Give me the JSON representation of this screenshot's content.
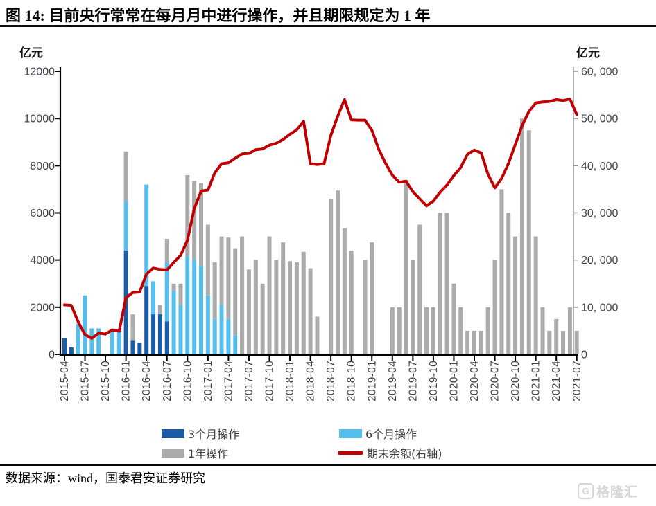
{
  "title": "图 14:  目前央行常常在每月月中进行操作，并且期限规定为 1 年",
  "left_axis": {
    "unit": "亿元",
    "tick_labels": [
      "0",
      "2000",
      "4000",
      "6000",
      "8000",
      "10000",
      "12000"
    ]
  },
  "right_axis": {
    "unit": "亿元",
    "tick_labels": [
      "0",
      "10, 000",
      "20, 000",
      "30, 000",
      "40, 000",
      "50, 000",
      "60, 000"
    ]
  },
  "source_note": "数据来源：wind，国泰君安证券研究",
  "watermark": {
    "icon": "gelonghui-g-logo",
    "text": "格隆汇"
  },
  "colors": {
    "bar_3m": "#1B5AA5",
    "bar_6m": "#56BEEB",
    "bar_1y": "#ABABAB",
    "balance_line": "#C00000",
    "axis_line": "#000000",
    "right_axis_line": "#8f8f94",
    "tick_text": "#44444c"
  },
  "chart_data": {
    "type": "bar",
    "subtype": "stacked-bars-with-line-overlay-dual-axis",
    "grid": false,
    "legend_position": "bottom",
    "left_ylim": [
      0,
      12000
    ],
    "right_ylim": [
      0,
      60000
    ],
    "x_tick_every": 3,
    "categories": [
      "2015-04",
      "2015-05",
      "2015-06",
      "2015-07",
      "2015-08",
      "2015-09",
      "2015-10",
      "2015-11",
      "2015-12",
      "2016-01",
      "2016-02",
      "2016-03",
      "2016-04",
      "2016-05",
      "2016-06",
      "2016-07",
      "2016-08",
      "2016-09",
      "2016-10",
      "2016-11",
      "2016-12",
      "2017-01",
      "2017-02",
      "2017-03",
      "2017-04",
      "2017-05",
      "2017-06",
      "2017-07",
      "2017-08",
      "2017-09",
      "2017-10",
      "2017-11",
      "2017-12",
      "2018-01",
      "2018-02",
      "2018-03",
      "2018-04",
      "2018-05",
      "2018-06",
      "2018-07",
      "2018-08",
      "2018-09",
      "2018-10",
      "2018-11",
      "2018-12",
      "2019-01",
      "2019-02",
      "2019-03",
      "2019-04",
      "2019-05",
      "2019-06",
      "2019-07",
      "2019-08",
      "2019-09",
      "2019-10",
      "2019-11",
      "2019-12",
      "2020-01",
      "2020-02",
      "2020-03",
      "2020-04",
      "2020-05",
      "2020-06",
      "2020-07",
      "2020-08",
      "2020-09",
      "2020-10",
      "2020-11",
      "2020-12",
      "2021-01",
      "2021-02",
      "2021-03",
      "2021-04",
      "2021-05",
      "2021-06",
      "2021-07"
    ],
    "series": [
      {
        "name": "3个月操作",
        "type": "bar",
        "stack": true,
        "axis": "left",
        "color": "#1B5AA5",
        "values": [
          700,
          300,
          0,
          0,
          0,
          0,
          0,
          0,
          0,
          4400,
          600,
          500,
          2900,
          1700,
          1700,
          1400,
          0,
          0,
          0,
          0,
          0,
          0,
          0,
          0,
          0,
          0,
          0,
          0,
          0,
          0,
          0,
          0,
          0,
          0,
          0,
          0,
          0,
          0,
          0,
          0,
          0,
          0,
          0,
          0,
          0,
          0,
          0,
          0,
          0,
          0,
          0,
          0,
          0,
          0,
          0,
          0,
          0,
          0,
          0,
          0,
          0,
          0,
          0,
          0,
          0,
          0,
          0,
          0,
          0,
          0,
          0,
          0,
          0,
          0,
          0,
          0
        ]
      },
      {
        "name": "6个月操作",
        "type": "bar",
        "stack": true,
        "axis": "left",
        "color": "#56BEEB",
        "values": [
          0,
          0,
          1300,
          2500,
          1100,
          1100,
          0,
          1000,
          1000,
          2100,
          0,
          0,
          4300,
          1400,
          0,
          2500,
          2700,
          2100,
          4150,
          4000,
          3750,
          2500,
          1500,
          2100,
          1500,
          800,
          0,
          0,
          0,
          0,
          0,
          0,
          0,
          0,
          0,
          0,
          0,
          0,
          0,
          0,
          0,
          0,
          0,
          0,
          0,
          0,
          0,
          0,
          0,
          0,
          0,
          0,
          0,
          0,
          0,
          0,
          0,
          0,
          0,
          0,
          0,
          0,
          0,
          0,
          0,
          0,
          0,
          0,
          0,
          0,
          0,
          0,
          0,
          0,
          0,
          0
        ]
      },
      {
        "name": "1年操作",
        "type": "bar",
        "stack": true,
        "axis": "left",
        "color": "#ABABAB",
        "values": [
          0,
          0,
          0,
          0,
          0,
          0,
          0,
          0,
          0,
          2100,
          1100,
          0,
          0,
          0,
          400,
          1000,
          300,
          900,
          3450,
          3350,
          3500,
          3000,
          2400,
          2900,
          3450,
          3700,
          5000,
          3600,
          4000,
          3000,
          5000,
          4000,
          4750,
          3950,
          3900,
          4350,
          3650,
          1600,
          0,
          6600,
          6950,
          5350,
          4400,
          0,
          4000,
          4750,
          0,
          0,
          2000,
          2000,
          7400,
          4000,
          5500,
          2000,
          2000,
          6000,
          6000,
          3000,
          2000,
          1000,
          1000,
          1000,
          2000,
          4000,
          7000,
          6000,
          5000,
          10000,
          9500,
          5000,
          2000,
          1000,
          1500,
          1000,
          2000,
          1000
        ]
      },
      {
        "name": "期末余额(右轴)",
        "type": "line",
        "axis": "right",
        "color": "#C00000",
        "values": [
          10500,
          10400,
          6900,
          4200,
          3400,
          4500,
          4300,
          5200,
          4900,
          12000,
          13100,
          13200,
          17000,
          18300,
          18000,
          17900,
          19500,
          21000,
          24200,
          30900,
          34600,
          34850,
          38500,
          40400,
          40600,
          41600,
          42500,
          42600,
          43400,
          43550,
          44350,
          44750,
          45550,
          46650,
          47600,
          49400,
          40400,
          40250,
          40400,
          46400,
          50500,
          54000,
          49700,
          49650,
          49650,
          47500,
          43500,
          40500,
          38000,
          36500,
          36700,
          34500,
          33000,
          31500,
          32500,
          34400,
          35900,
          37900,
          39600,
          42400,
          43300,
          42700,
          38200,
          35300,
          37300,
          40500,
          44500,
          48500,
          51500,
          53300,
          53500,
          53600,
          54000,
          53800,
          54150,
          50800
        ]
      }
    ]
  }
}
